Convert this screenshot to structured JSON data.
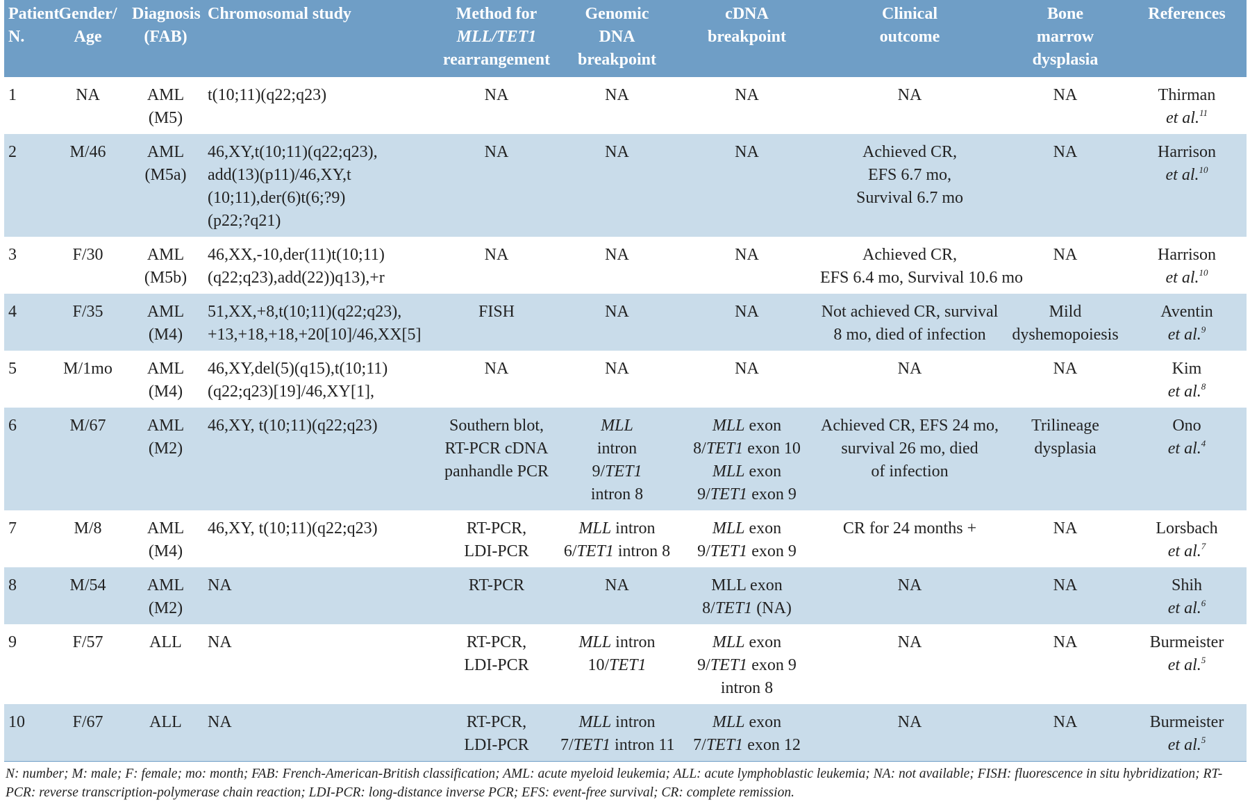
{
  "table": {
    "header": [
      [
        "Patient",
        "N."
      ],
      [
        "Gender/",
        "Age"
      ],
      [
        "Diagnosis",
        "(FAB)"
      ],
      [
        "Chromosomal study"
      ],
      [
        "Method for",
        [
          {
            "i": "MLL/TET1"
          }
        ],
        "rearrangement"
      ],
      [
        "Genomic",
        "DNA",
        "breakpoint"
      ],
      [
        "cDNA",
        "breakpoint"
      ],
      [
        "Clinical",
        "outcome"
      ],
      [
        "Bone",
        "marrow",
        "dysplasia"
      ],
      [
        "References"
      ]
    ],
    "rows": [
      [
        [
          "1"
        ],
        [
          "NA"
        ],
        [
          "AML",
          "(M5)"
        ],
        [
          "t(10;11)(q22;q23)"
        ],
        [
          "NA"
        ],
        [
          "NA"
        ],
        [
          "NA"
        ],
        [
          "NA"
        ],
        [
          "NA"
        ],
        [
          "Thirman",
          [
            {
              "i": "et al."
            },
            {
              "sup": "11"
            }
          ]
        ]
      ],
      [
        [
          "2"
        ],
        [
          "M/46"
        ],
        [
          "AML",
          "(M5a)"
        ],
        [
          "46,XY,t(10;11)(q22;q23),",
          "add(13)(p11)/46,XY,t",
          "(10;11),der(6)t(6;?9)",
          "(p22;?q21)"
        ],
        [
          "NA"
        ],
        [
          "NA"
        ],
        [
          "NA"
        ],
        [
          "Achieved CR,",
          "EFS 6.7 mo,",
          "Survival 6.7 mo"
        ],
        [
          "NA"
        ],
        [
          "Harrison",
          [
            {
              "i": "et al."
            },
            {
              "sup": "10"
            }
          ]
        ]
      ],
      [
        [
          "3"
        ],
        [
          "F/30"
        ],
        [
          "AML",
          "(M5b)"
        ],
        [
          "46,XX,-10,der(11)t(10;11)",
          "(q22;q23),add(22))q13),+r"
        ],
        [
          "NA"
        ],
        [
          "NA"
        ],
        [
          "NA"
        ],
        [
          "Achieved CR,",
          "EFS 6.4 mo, Survival 10.6 mo"
        ],
        [
          "NA"
        ],
        [
          "Harrison",
          [
            {
              "i": "et al."
            },
            {
              "sup": "10"
            }
          ]
        ]
      ],
      [
        [
          "4"
        ],
        [
          "F/35"
        ],
        [
          "AML",
          "(M4)"
        ],
        [
          "51,XX,+8,t(10;11)(q22;q23),",
          "+13,+18,+18,+20[10]/46,XX[5]"
        ],
        [
          "FISH"
        ],
        [
          "NA"
        ],
        [
          "NA"
        ],
        [
          "Not achieved CR, survival",
          "8 mo, died of infection"
        ],
        [
          "Mild",
          "dyshemopoiesis"
        ],
        [
          "Aventin",
          [
            {
              "i": "et al."
            },
            {
              "sup": "9"
            }
          ]
        ]
      ],
      [
        [
          "5"
        ],
        [
          "M/1mo"
        ],
        [
          "AML",
          "(M4)"
        ],
        [
          "46,XY,del(5)(q15),t(10;11)",
          "(q22;q23)[19]/46,XY[1],"
        ],
        [
          "NA"
        ],
        [
          "NA"
        ],
        [
          "NA"
        ],
        [
          "NA"
        ],
        [
          "NA"
        ],
        [
          "Kim",
          [
            {
              "i": "et al."
            },
            {
              "sup": "8"
            }
          ]
        ]
      ],
      [
        [
          "6"
        ],
        [
          "M/67"
        ],
        [
          "AML",
          "(M2)"
        ],
        [
          "46,XY, t(10;11)(q22;q23)"
        ],
        [
          "Southern blot,",
          "RT-PCR cDNA",
          "panhandle PCR"
        ],
        [
          [
            {
              "i": "MLL"
            }
          ],
          "intron",
          [
            "9/",
            {
              "i": "TET1"
            }
          ],
          "intron 8"
        ],
        [
          [
            {
              "i": "MLL"
            },
            " exon"
          ],
          [
            "8/",
            {
              "i": "TET1"
            },
            " exon 10"
          ],
          [
            {
              "i": "MLL"
            },
            " exon"
          ],
          [
            "9/",
            {
              "i": "TET1"
            },
            " exon 9"
          ]
        ],
        [
          "Achieved CR, EFS 24 mo,",
          "survival 26 mo, died",
          "of infection"
        ],
        [
          "Trilineage",
          "dysplasia"
        ],
        [
          "Ono",
          [
            {
              "i": "et al."
            },
            {
              "sup": "4"
            }
          ]
        ]
      ],
      [
        [
          "7"
        ],
        [
          "M/8"
        ],
        [
          "AML",
          "(M4)"
        ],
        [
          "46,XY, t(10;11)(q22;q23)"
        ],
        [
          "RT-PCR,",
          "LDI-PCR"
        ],
        [
          [
            {
              "i": "MLL"
            },
            " intron"
          ],
          [
            "6/",
            {
              "i": "TET1"
            },
            " intron 8"
          ]
        ],
        [
          [
            {
              "i": "MLL"
            },
            " exon"
          ],
          [
            "9/",
            {
              "i": "TET1"
            },
            " exon 9"
          ]
        ],
        [
          "CR for 24 months +"
        ],
        [
          "NA"
        ],
        [
          "Lorsbach",
          [
            {
              "i": "et al."
            },
            {
              "sup": "7"
            }
          ]
        ]
      ],
      [
        [
          "8"
        ],
        [
          "M/54"
        ],
        [
          "AML",
          "(M2)"
        ],
        [
          "NA"
        ],
        [
          "RT-PCR"
        ],
        [
          "NA"
        ],
        [
          "MLL exon",
          [
            "8/",
            {
              "i": "TET1"
            },
            " (NA)"
          ]
        ],
        [
          "NA"
        ],
        [
          "NA"
        ],
        [
          "Shih",
          [
            {
              "i": "et al."
            },
            {
              "sup": "6"
            }
          ]
        ]
      ],
      [
        [
          "9"
        ],
        [
          "F/57"
        ],
        [
          "ALL"
        ],
        [
          "NA"
        ],
        [
          "RT-PCR,",
          "LDI-PCR"
        ],
        [
          [
            {
              "i": "MLL"
            },
            " intron"
          ],
          [
            "10/",
            {
              "i": "TET1"
            }
          ]
        ],
        [
          [
            {
              "i": "MLL"
            },
            " exon"
          ],
          [
            "9/",
            {
              "i": "TET1"
            },
            " exon 9"
          ],
          "intron 8"
        ],
        [
          "NA"
        ],
        [
          "NA"
        ],
        [
          "Burmeister",
          [
            {
              "i": "et al."
            },
            {
              "sup": "5"
            }
          ]
        ]
      ],
      [
        [
          "10"
        ],
        [
          "F/67"
        ],
        [
          "ALL"
        ],
        [
          "NA"
        ],
        [
          "RT-PCR,",
          "LDI-PCR"
        ],
        [
          [
            {
              "i": "MLL"
            },
            " intron"
          ],
          [
            "7/",
            {
              "i": "TET1"
            },
            " intron 11"
          ]
        ],
        [
          [
            {
              "i": "MLL"
            },
            " exon"
          ],
          [
            "7/",
            {
              "i": "TET1"
            },
            " exon 12"
          ]
        ],
        [
          "NA"
        ],
        [
          "NA"
        ],
        [
          "Burmeister",
          [
            {
              "i": "et al."
            },
            {
              "sup": "5"
            }
          ]
        ]
      ]
    ],
    "footnote": "N: number; M: male; F: female; mo: month; FAB: French-American-British classification; AML: acute myeloid leukemia; ALL: acute lymphoblastic leukemia; NA: not available; FISH: fluorescence in situ hybridization; RT-PCR: reverse transcription-polymerase chain reaction; LDI-PCR: long-distance inverse PCR; EFS: event-free survival; CR: complete remission."
  }
}
